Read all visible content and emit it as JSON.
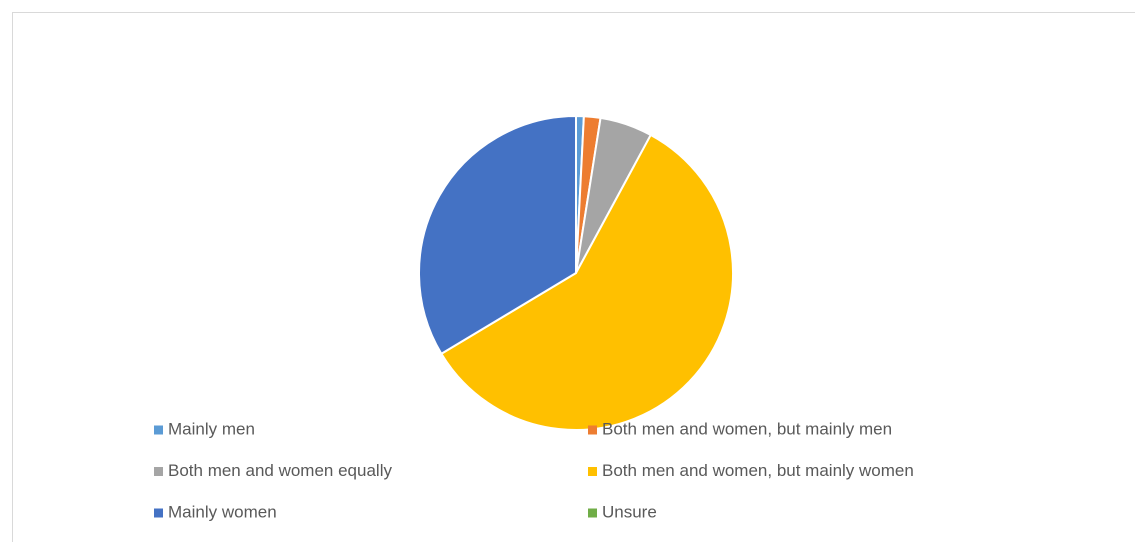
{
  "chart_data": {
    "type": "pie",
    "categories": [
      "Mainly men",
      "Both men and women, but mainly men",
      "Both men and women equally",
      "Both men and women, but mainly women",
      "Mainly women",
      "Unsure"
    ],
    "values": [
      0.8,
      1.7,
      5.4,
      58.5,
      33.6,
      0
    ],
    "colors": [
      "#5b9bd5",
      "#ed7d31",
      "#a5a5a5",
      "#ffc000",
      "#4472c4",
      "#70ad47"
    ]
  }
}
